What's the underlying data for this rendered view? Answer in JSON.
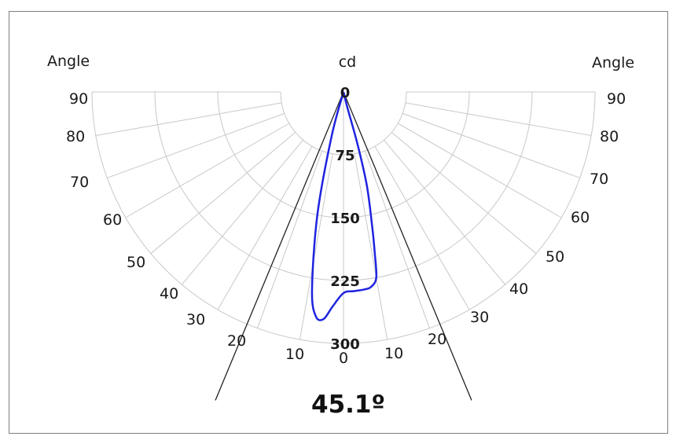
{
  "chart_data": {
    "type": "polar",
    "title": "",
    "units_label": "cd",
    "left_axis_title": "Angle",
    "right_axis_title": "Angle",
    "radial_ticks": [
      0,
      75,
      150,
      225,
      300
    ],
    "radial_max": 300,
    "angle_ticks_left": [
      90,
      80,
      70,
      60,
      50,
      40,
      30,
      20,
      10
    ],
    "angle_ticks_right": [
      90,
      80,
      70,
      60,
      50,
      40,
      30,
      20,
      10
    ],
    "bottom_tick": "0",
    "beam_angle_label": "45.1º",
    "beam_angle_deg": 45.1,
    "series": [
      {
        "color": "#1f24e0",
        "points": [
          {
            "angle": -15,
            "cd": 55
          },
          {
            "angle": -12,
            "cd": 150
          },
          {
            "angle": -9,
            "cd": 240
          },
          {
            "angle": -7,
            "cd": 270
          },
          {
            "angle": -5,
            "cd": 272
          },
          {
            "angle": -3,
            "cd": 257
          },
          {
            "angle": 0,
            "cd": 240
          },
          {
            "angle": 3,
            "cd": 238
          },
          {
            "angle": 6,
            "cd": 237
          },
          {
            "angle": 8,
            "cd": 235
          },
          {
            "angle": 10,
            "cd": 225
          },
          {
            "angle": 11,
            "cd": 195
          },
          {
            "angle": 12,
            "cd": 165
          },
          {
            "angle": 14,
            "cd": 115
          },
          {
            "angle": 15,
            "cd": 65
          },
          {
            "angle": 14,
            "cd": 20
          }
        ]
      }
    ],
    "colors": {
      "grid": "#c8c8c8",
      "curve": "#1f24e0",
      "beam_lines": "#222222"
    }
  }
}
